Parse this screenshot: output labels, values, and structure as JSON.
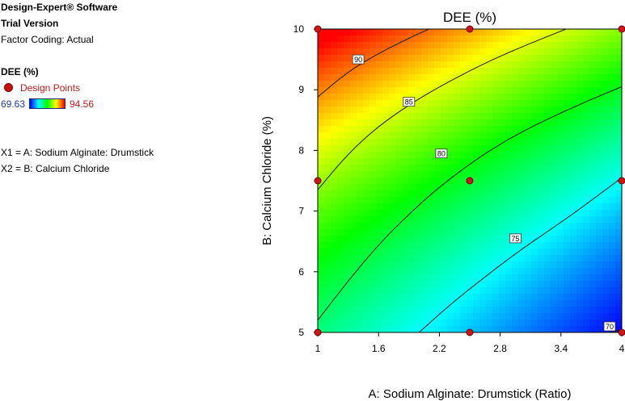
{
  "header": {
    "app_name": "Design-Expert® Software",
    "version": "Trial Version",
    "factor_coding": "Factor Coding: Actual"
  },
  "legend": {
    "response": "DEE (%)",
    "design_points_label": "Design Points",
    "color_min": "69.63",
    "color_max": "94.56",
    "x1_note": "X1 = A: Sodium Alginate: Drumstick",
    "x2_note": "X2 = B: Calcium Chloride"
  },
  "chart_data": {
    "type": "contour",
    "title": "DEE (%)",
    "xlabel": "A: Sodium Alginate: Drumstick (Ratio)",
    "ylabel": "B: Calcium Chloride (%)",
    "xlim": [
      1,
      4
    ],
    "ylim": [
      5,
      10
    ],
    "x_ticks": [
      "1",
      "1.6",
      "2.2",
      "2.8",
      "3.4",
      "4"
    ],
    "y_ticks": [
      "5",
      "6",
      "7",
      "8",
      "9",
      "10"
    ],
    "response_range": [
      69.63,
      94.56
    ],
    "colormap": [
      "#0000ff",
      "#00ffff",
      "#00ff00",
      "#ffff00",
      "#ff0000"
    ],
    "contours": [
      {
        "level": 70,
        "label": "70",
        "points": [
          [
            3.9,
            5.0
          ],
          [
            4.0,
            5.05
          ]
        ]
      },
      {
        "level": 75,
        "label": "75",
        "points": [
          [
            2.0,
            5.0
          ],
          [
            2.3,
            5.45
          ],
          [
            2.6,
            5.85
          ],
          [
            2.95,
            6.3
          ],
          [
            3.3,
            6.7
          ],
          [
            3.6,
            7.05
          ],
          [
            4.0,
            7.55
          ]
        ]
      },
      {
        "level": 80,
        "label": "80",
        "points": [
          [
            1.0,
            5.2
          ],
          [
            1.3,
            5.85
          ],
          [
            1.6,
            6.45
          ],
          [
            1.9,
            6.95
          ],
          [
            2.2,
            7.4
          ],
          [
            2.6,
            7.9
          ],
          [
            3.0,
            8.3
          ],
          [
            3.5,
            8.7
          ],
          [
            4.0,
            9.05
          ]
        ]
      },
      {
        "level": 85,
        "label": "85",
        "points": [
          [
            1.0,
            7.35
          ],
          [
            1.3,
            7.95
          ],
          [
            1.6,
            8.4
          ],
          [
            1.9,
            8.75
          ],
          [
            2.2,
            9.05
          ],
          [
            2.6,
            9.4
          ],
          [
            3.0,
            9.7
          ],
          [
            3.45,
            10.0
          ]
        ]
      },
      {
        "level": 90,
        "label": "90",
        "points": [
          [
            1.0,
            8.88
          ],
          [
            1.3,
            9.3
          ],
          [
            1.6,
            9.6
          ],
          [
            1.9,
            9.85
          ],
          [
            2.1,
            10.0
          ]
        ]
      }
    ],
    "design_points": [
      {
        "x": 1,
        "y": 10
      },
      {
        "x": 2.5,
        "y": 10
      },
      {
        "x": 4,
        "y": 10
      },
      {
        "x": 1,
        "y": 7.5
      },
      {
        "x": 2.5,
        "y": 7.5
      },
      {
        "x": 4,
        "y": 7.5
      },
      {
        "x": 1,
        "y": 5
      },
      {
        "x": 2.5,
        "y": 5
      },
      {
        "x": 4,
        "y": 5
      }
    ]
  }
}
